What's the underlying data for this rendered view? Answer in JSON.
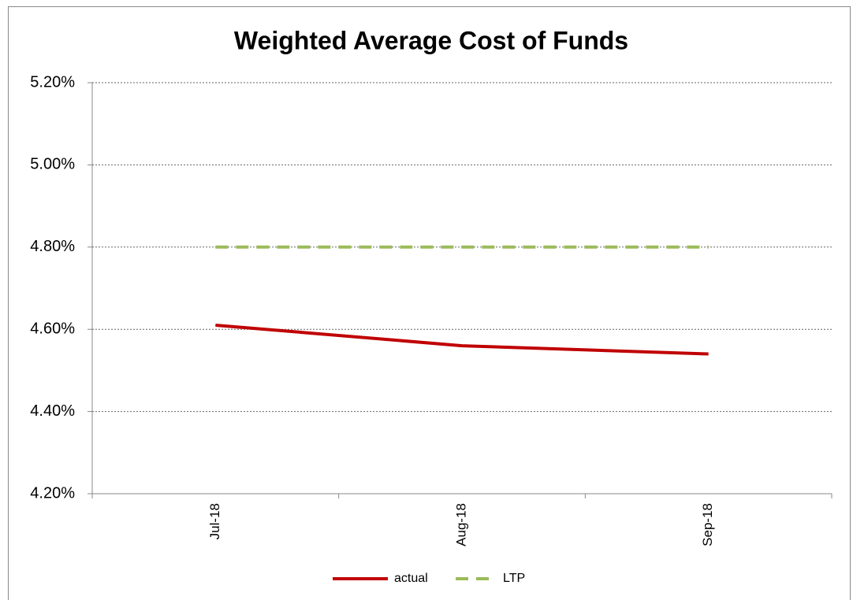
{
  "chart_data": {
    "type": "line",
    "title": "Weighted Average Cost of Funds",
    "categories": [
      "Jul-18",
      "Aug-18",
      "Sep-18"
    ],
    "series": [
      {
        "name": "actual",
        "color": "#c00000",
        "dash": false,
        "values": [
          4.61,
          4.56,
          4.54
        ]
      },
      {
        "name": "LTP",
        "color": "#9bbb59",
        "dash": true,
        "values": [
          4.8,
          4.8,
          4.8
        ]
      }
    ],
    "ylim": [
      4.2,
      5.2
    ],
    "yticks": [
      {
        "value": 4.2,
        "label": "4.20%"
      },
      {
        "value": 4.4,
        "label": "4.40%"
      },
      {
        "value": 4.6,
        "label": "4.60%"
      },
      {
        "value": 4.8,
        "label": "4.80%"
      },
      {
        "value": 5.0,
        "label": "5.00%"
      },
      {
        "value": 5.2,
        "label": "5.20%"
      }
    ],
    "grid": true,
    "legend": "bottom"
  }
}
